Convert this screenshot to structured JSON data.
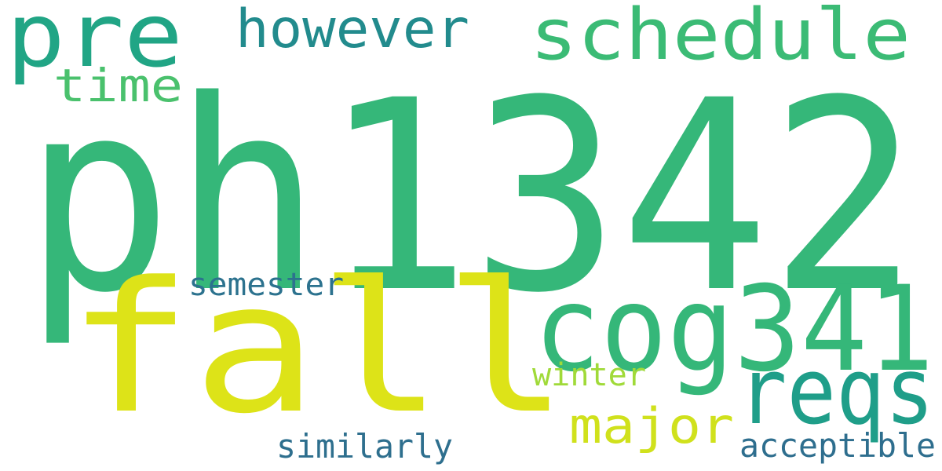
{
  "words": [
    {
      "text": "ph1342",
      "color": "#35b779"
    },
    {
      "text": "fall",
      "color": "#dde318"
    },
    {
      "text": "cog341",
      "color": "#35b779"
    },
    {
      "text": "pre",
      "color": "#21a585"
    },
    {
      "text": "schedule",
      "color": "#3bbb75"
    },
    {
      "text": "however",
      "color": "#228b8d"
    },
    {
      "text": "reqs",
      "color": "#1f9e89"
    },
    {
      "text": "time",
      "color": "#4ac16d"
    },
    {
      "text": "major",
      "color": "#d0e11c"
    },
    {
      "text": "semester",
      "color": "#2c728e"
    },
    {
      "text": "winter",
      "color": "#a0da39"
    },
    {
      "text": "similarly",
      "color": "#2e6f8e"
    },
    {
      "text": "acceptible",
      "color": "#2e6e8e"
    }
  ]
}
